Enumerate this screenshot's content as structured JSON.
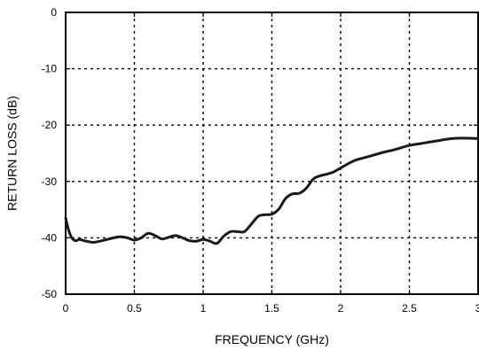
{
  "chart_data": {
    "type": "line",
    "title": "",
    "xlabel": "FREQUENCY (GHz)",
    "ylabel": "RETURN LOSS (dB)",
    "xlim": [
      0,
      3
    ],
    "ylim": [
      -50,
      0
    ],
    "x_ticks": [
      0,
      0.5,
      1,
      1.5,
      2,
      2.5,
      3
    ],
    "x_tick_labels": [
      "0",
      "0.5",
      "1",
      "1.5",
      "2",
      "2.5",
      "3"
    ],
    "y_ticks": [
      0,
      -10,
      -20,
      -30,
      -40,
      -50
    ],
    "y_tick_labels": [
      "0",
      "-10",
      "-20",
      "-30",
      "-40",
      "-50"
    ],
    "grid": true,
    "grid_style": "dotted",
    "legend": "none",
    "colors": {
      "line": "#1a1a1a",
      "axis": "#000000",
      "grid": "#000000"
    },
    "series": [
      {
        "x": [
          0,
          0.02,
          0.04,
          0.06,
          0.08,
          0.1,
          0.15,
          0.2,
          0.25,
          0.3,
          0.35,
          0.4,
          0.45,
          0.5,
          0.55,
          0.6,
          0.65,
          0.7,
          0.75,
          0.8,
          0.85,
          0.9,
          0.95,
          1.0,
          1.05,
          1.1,
          1.15,
          1.2,
          1.25,
          1.3,
          1.35,
          1.4,
          1.45,
          1.5,
          1.55,
          1.6,
          1.65,
          1.7,
          1.75,
          1.8,
          1.85,
          1.9,
          1.95,
          2.0,
          2.1,
          2.2,
          2.3,
          2.4,
          2.5,
          2.6,
          2.7,
          2.8,
          2.9,
          3.0
        ],
        "y": [
          -36.5,
          -38.5,
          -39.8,
          -40.4,
          -40.5,
          -40.3,
          -40.6,
          -40.8,
          -40.6,
          -40.3,
          -40.0,
          -39.8,
          -40.0,
          -40.4,
          -40.0,
          -39.2,
          -39.6,
          -40.2,
          -39.9,
          -39.6,
          -40.0,
          -40.5,
          -40.6,
          -40.3,
          -40.6,
          -41.0,
          -39.7,
          -38.9,
          -38.9,
          -38.9,
          -37.6,
          -36.2,
          -35.9,
          -35.8,
          -34.9,
          -33.0,
          -32.2,
          -32.1,
          -31.2,
          -29.6,
          -29.0,
          -28.7,
          -28.3,
          -27.6,
          -26.3,
          -25.6,
          -24.9,
          -24.3,
          -23.6,
          -23.2,
          -22.8,
          -22.4,
          -22.3,
          -22.4
        ]
      }
    ]
  }
}
